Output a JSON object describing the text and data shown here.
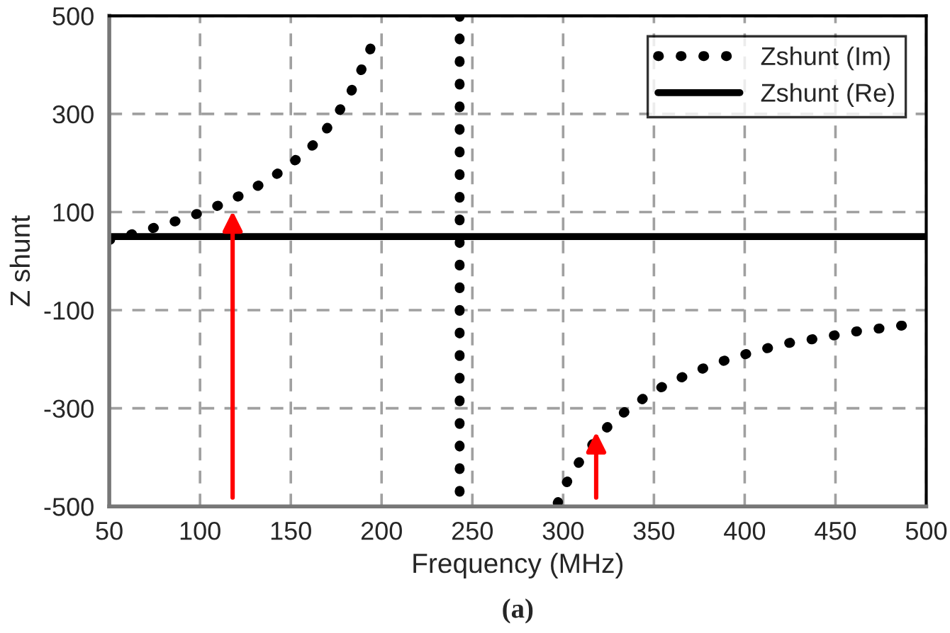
{
  "chart_data": {
    "type": "line",
    "xlabel": "Frequency (MHz)",
    "ylabel": "Z shunt",
    "xlim": [
      50,
      500
    ],
    "xticks": [
      50,
      100,
      150,
      200,
      250,
      300,
      350,
      400,
      450,
      500
    ],
    "ylim": [
      -500,
      500
    ],
    "yticks": [
      -500,
      -300,
      -100,
      100,
      300,
      500
    ],
    "grid": true,
    "legend": "top right",
    "series": [
      {
        "name": "Zshunt (Im)",
        "color": "#000000",
        "line_style": "dotted",
        "x": [
          50,
          60,
          71,
          82,
          93,
          104,
          115,
          125,
          135,
          145,
          154,
          163,
          170,
          177,
          183,
          188,
          193,
          197,
          null,
          243,
          243,
          null,
          297,
          302,
          308,
          315,
          322,
          330,
          340,
          349,
          360,
          370,
          381,
          391,
          402,
          413,
          424,
          436,
          447,
          458,
          469,
          481,
          492
        ],
        "values": [
          43,
          52,
          64,
          76,
          89,
          104,
          121,
          139,
          160,
          184,
          210,
          239,
          271,
          308,
          344,
          383,
          424,
          466,
          null,
          500,
          -500,
          null,
          -493,
          -451,
          -414,
          -379,
          -347,
          -318,
          -291,
          -267,
          -246,
          -229,
          -213,
          -200,
          -188,
          -177,
          -167,
          -160,
          -153,
          -145,
          -140,
          -134,
          -129
        ]
      },
      {
        "name": "Zshunt (Re)",
        "color": "#000000",
        "line_style": "solid",
        "x": [
          50,
          500
        ],
        "values": [
          50,
          50
        ]
      }
    ],
    "annotations": [
      "(a)"
    ]
  }
}
